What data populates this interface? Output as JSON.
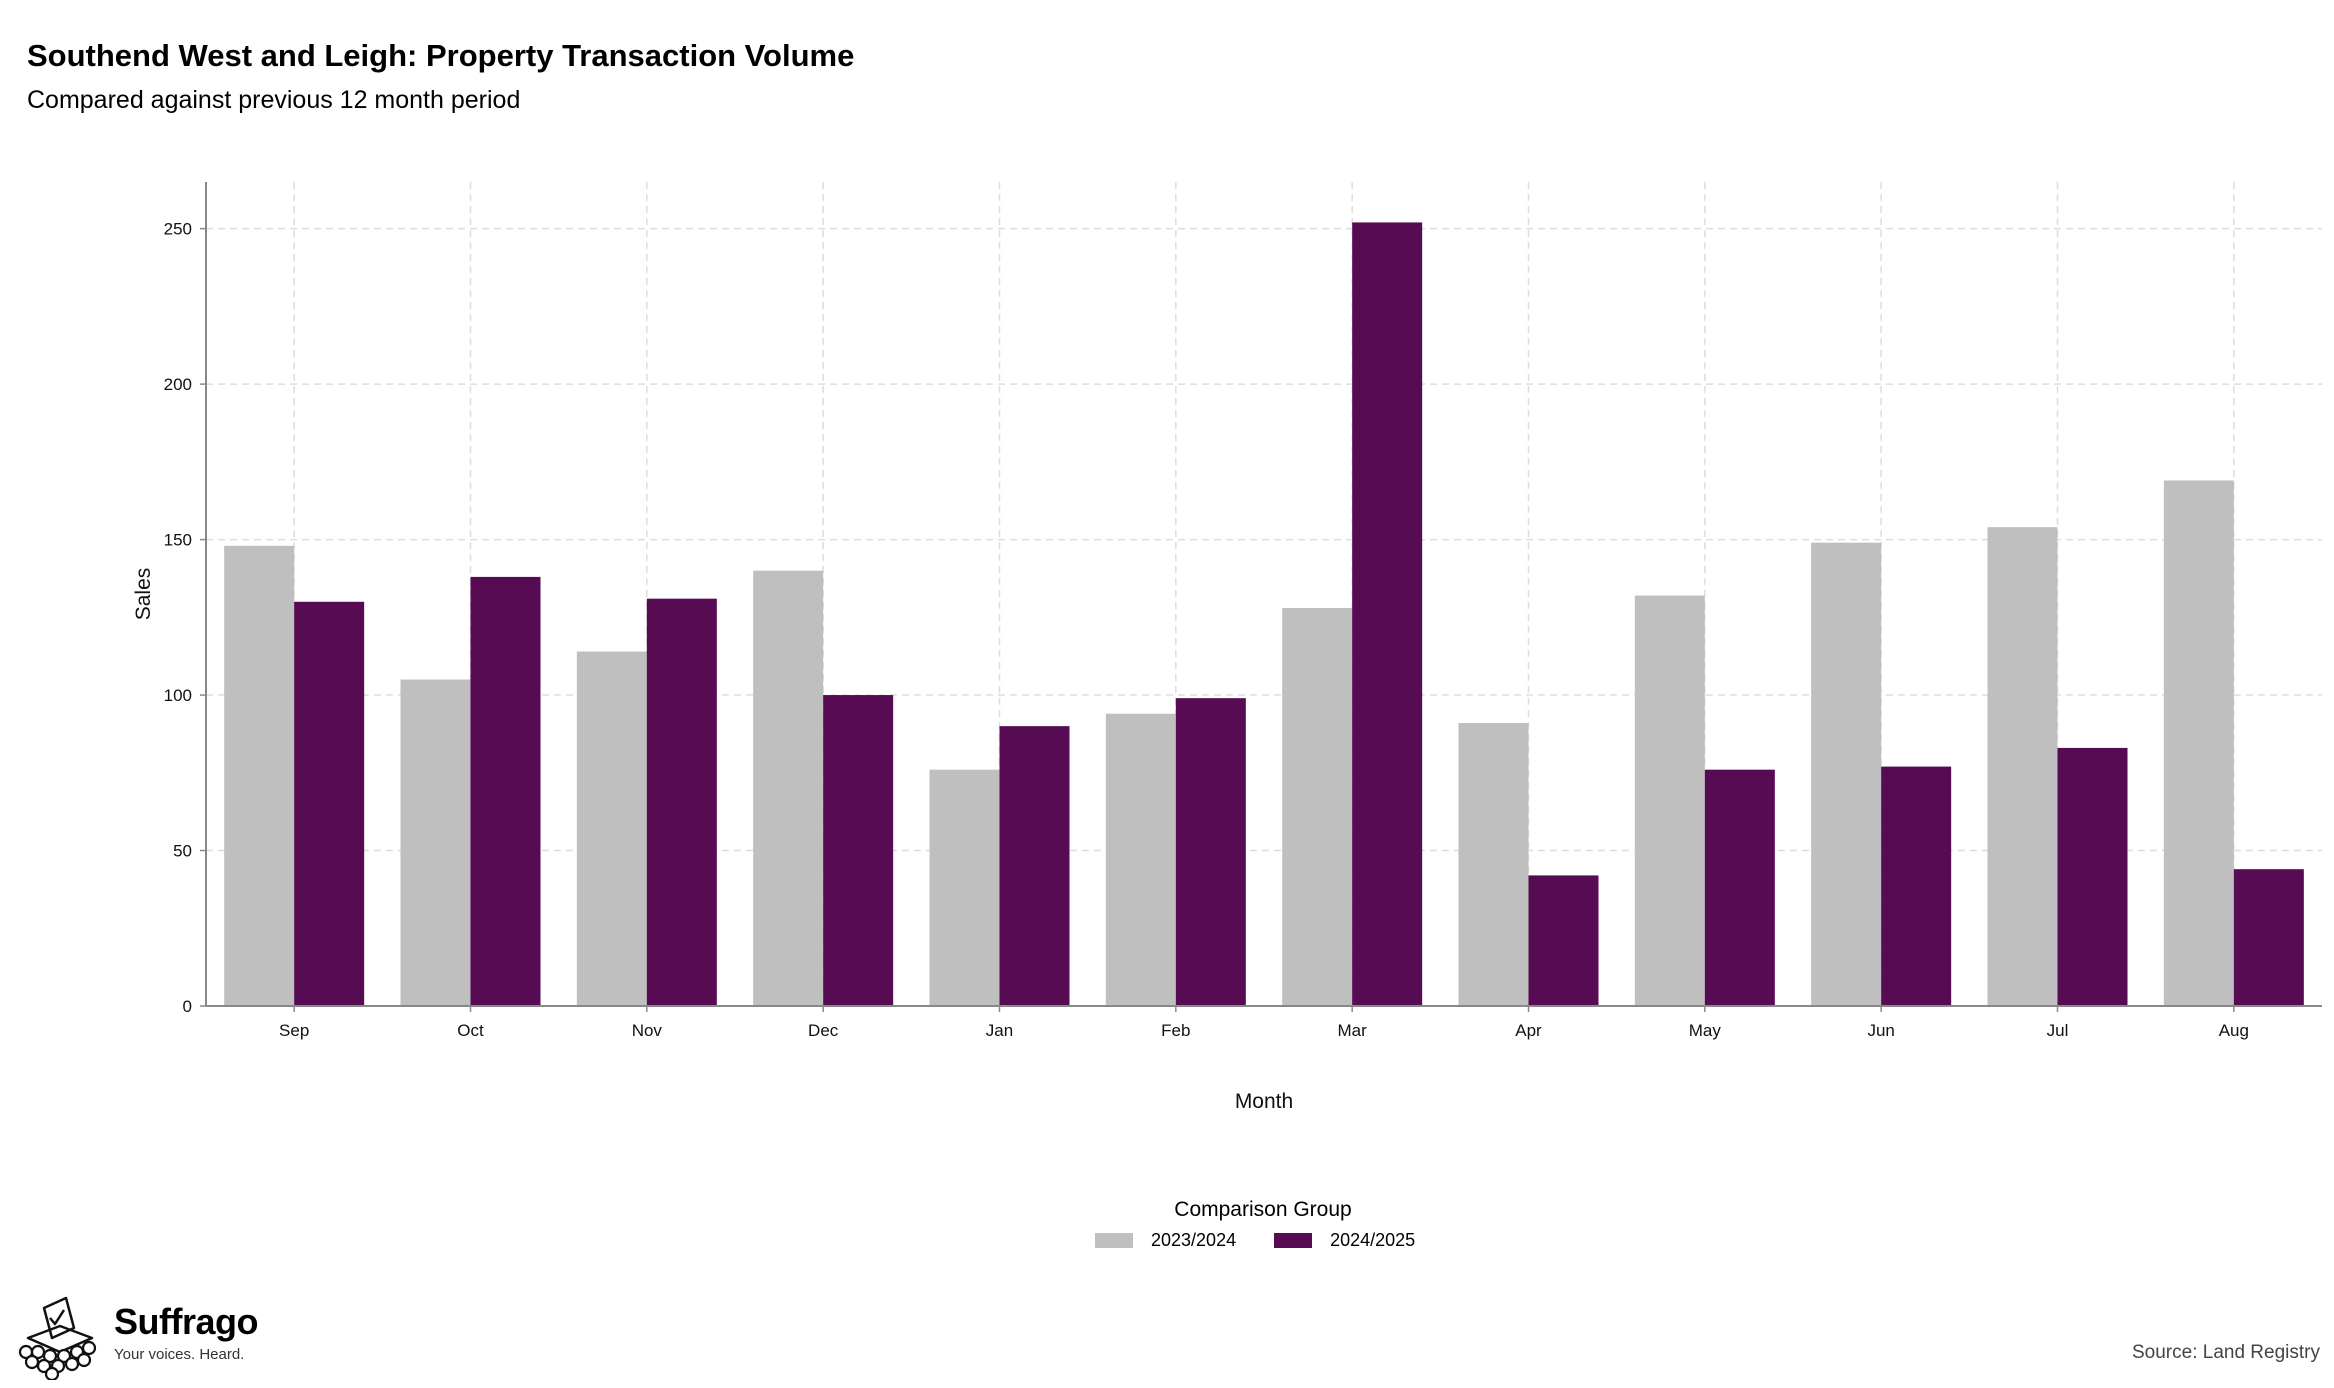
{
  "header": {
    "title": "Southend West and Leigh: Property Transaction Volume",
    "subtitle": "Compared against previous 12 month period"
  },
  "chart_data": {
    "type": "bar",
    "xlabel": "Month",
    "ylabel": "Sales",
    "ylim": [
      0,
      265
    ],
    "yticks": [
      0,
      50,
      100,
      150,
      200,
      250
    ],
    "grid": true,
    "legend_position": "bottom",
    "legend_title": "Comparison Group",
    "categories": [
      "Sep",
      "Oct",
      "Nov",
      "Dec",
      "Jan",
      "Feb",
      "Mar",
      "Apr",
      "May",
      "Jun",
      "Jul",
      "Aug"
    ],
    "series": [
      {
        "name": "2023/2024",
        "color": "#bfbfbf",
        "values": [
          148,
          105,
          114,
          140,
          76,
          94,
          128,
          91,
          132,
          149,
          154,
          169
        ]
      },
      {
        "name": "2024/2025",
        "color": "#560b53",
        "values": [
          130,
          138,
          131,
          100,
          90,
          99,
          252,
          42,
          76,
          77,
          83,
          44
        ]
      }
    ]
  },
  "footer": {
    "brand_name": "Suffrago",
    "tagline": "Your voices. Heard.",
    "source": "Source: Land Registry"
  },
  "icons": {
    "logo": "ballot-box-icon"
  }
}
